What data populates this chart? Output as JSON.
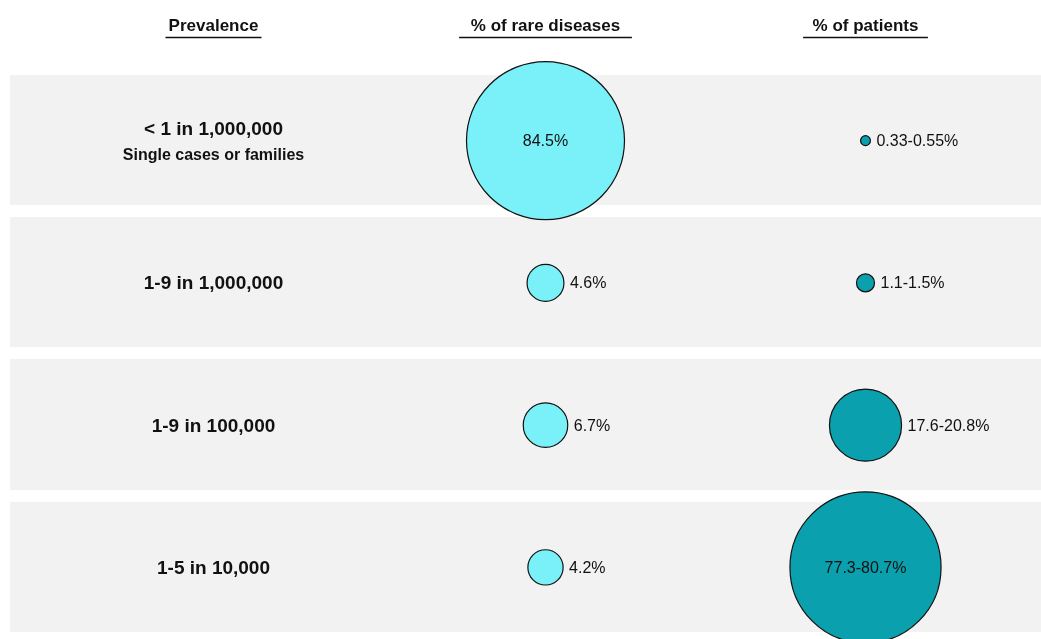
{
  "chart_data": {
    "type": "other",
    "annotations": [
      "% of rare diseases",
      "% of patients"
    ],
    "xlabel": "Prevalence",
    "categories": [
      "< 1 in 1,000,000\nSingle cases or families",
      "1-9 in 1,000,000",
      "1-9 in 100,000",
      "1-5 in 10,000"
    ],
    "series": [
      {
        "color": "#7af0f8",
        "values": [
          84.5,
          4.6,
          6.7,
          4.2
        ],
        "value_labels": [
          "84.5%",
          "4.6%",
          "6.7%",
          "4.2%"
        ]
      },
      {
        "color": "#0aa0ad",
        "values": [
          0.33,
          1.1,
          17.6,
          77.3
        ],
        "value_labels": [
          "0.33-0.55%",
          "1.1-1.5%",
          "17.6-20.8%",
          "77.3-80.7%"
        ]
      }
    ]
  }
}
